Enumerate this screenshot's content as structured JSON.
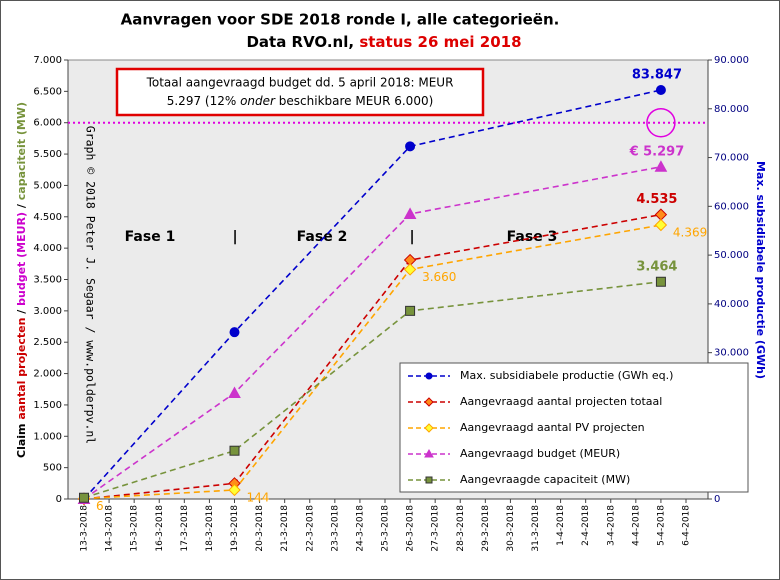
{
  "chart_data": {
    "type": "line",
    "title": {
      "line1": "Aanvragen voor SDE 2018 ronde I, alle categorieën.",
      "line2": [
        "Data RVO.nl, ",
        "status 26 mei 2018"
      ]
    },
    "ylabel": [
      "Claim ",
      "aantal projecten",
      " / ",
      "budget (MEUR)",
      " / ",
      "capaciteit (MW)"
    ],
    "y2label": "Max. subsidiabele productie (GWh)",
    "watermark": "Graph © 2018 Peter J. Segaar / www.polderpv.nl",
    "box": {
      "line1": "Totaal aangevraagd budget dd. 5 april 2018: MEUR",
      "line2": [
        "5.297 (12% ",
        "onder",
        " beschikbare MEUR  6.000)"
      ]
    },
    "phases": [
      "Fase 1",
      "|",
      "Fase 2",
      "|",
      "Fase 3"
    ],
    "categories": [
      "13-3-2018",
      "14-3-2018",
      "15-3-2018",
      "16-3-2018",
      "17-3-2018",
      "18-3-2018",
      "19-3-2018",
      "20-3-2018",
      "21-3-2018",
      "22-3-2018",
      "23-3-2018",
      "24-3-2018",
      "25-3-2018",
      "26-3-2018",
      "27-3-2018",
      "28-3-2018",
      "29-3-2018",
      "30-3-2018",
      "31-3-2018",
      "1-4-2018",
      "2-4-2018",
      "3-4-2018",
      "4-4-2018",
      "5-4-2018",
      "6-4-2018"
    ],
    "ylim": [
      0,
      7000
    ],
    "yticks": [
      0,
      {
        "value": 500,
        "label": "500"
      },
      {
        "value": 1000,
        "label": "1.000"
      },
      {
        "value": 1500,
        "label": "1.500"
      },
      {
        "value": 2000,
        "label": "2.000"
      },
      {
        "value": 2500,
        "label": "2.500"
      },
      {
        "value": 3000,
        "label": "3.000"
      },
      {
        "value": 3500,
        "label": "3.500"
      },
      {
        "value": 4000,
        "label": "4.000"
      },
      {
        "value": 4500,
        "label": "4.500"
      },
      {
        "value": 5000,
        "label": "5.000"
      },
      {
        "value": 5500,
        "label": "5.500"
      },
      {
        "value": 6000,
        "label": "6.000"
      },
      {
        "value": 6500,
        "label": "6.500"
      },
      {
        "value": 7000,
        "label": "7.000"
      }
    ],
    "y2lim": [
      0,
      90000
    ],
    "y2ticks": [
      0,
      {
        "value": 10000,
        "label": "10.000"
      },
      {
        "value": 20000,
        "label": "20.000"
      },
      {
        "value": 30000,
        "label": "30.000"
      },
      {
        "value": 40000,
        "label": "40.000"
      },
      {
        "value": 50000,
        "label": "50.000"
      },
      {
        "value": 60000,
        "label": "60.000"
      },
      {
        "value": 70000,
        "label": "70.000"
      },
      {
        "value": 80000,
        "label": "80.000"
      },
      {
        "value": 90000,
        "label": "90.000"
      }
    ],
    "ref_line": {
      "value": 6000,
      "color": "#e000e0"
    },
    "series": [
      {
        "name": "Max. subsidiabele productie (GWh eq.)",
        "color": "#0000cc",
        "marker": "circle",
        "marker_fill": "#0000cc",
        "axis": "y2",
        "x": [
          "13-3-2018",
          "19-3-2018",
          "26-3-2018",
          "5-4-2018"
        ],
        "values": [
          0,
          34200,
          72300,
          83847
        ],
        "value_labels": [
          null,
          null,
          null,
          "83.847"
        ]
      },
      {
        "name": "Aangevraagd aantal projecten totaal",
        "color": "#cc0000",
        "marker": "diamond",
        "marker_fill": "#ff8c1a",
        "x": [
          "13-3-2018",
          "19-3-2018",
          "26-3-2018",
          "5-4-2018"
        ],
        "values": [
          0,
          250,
          3810,
          4535
        ],
        "value_labels": [
          null,
          null,
          null,
          "4.535"
        ]
      },
      {
        "name": "Aangevraagd aantal PV projecten",
        "color": "#ffa500",
        "marker": "diamond",
        "marker_fill": "#ffff33",
        "x": [
          "13-3-2018",
          "19-3-2018",
          "26-3-2018",
          "5-4-2018"
        ],
        "values": [
          6,
          144,
          3660,
          4369
        ],
        "value_labels": [
          "6",
          "144",
          "3.660",
          "4.369"
        ]
      },
      {
        "name": "Aangevraagd budget (MEUR)",
        "color": "#cc33cc",
        "marker": "triangle",
        "marker_fill": "#cc33cc",
        "x": [
          "13-3-2018",
          "19-3-2018",
          "26-3-2018",
          "5-4-2018"
        ],
        "values": [
          0,
          1690,
          4545,
          5297
        ],
        "value_labels": [
          null,
          null,
          null,
          "€ 5.297"
        ]
      },
      {
        "name": "Aangevraagde capaciteit (MW)",
        "color": "#77933c",
        "marker": "square",
        "marker_fill": "#77933c",
        "x": [
          "13-3-2018",
          "19-3-2018",
          "26-3-2018",
          "5-4-2018"
        ],
        "values": [
          20,
          770,
          3000,
          3464
        ],
        "value_labels": [
          null,
          null,
          null,
          "3.464"
        ]
      }
    ]
  }
}
